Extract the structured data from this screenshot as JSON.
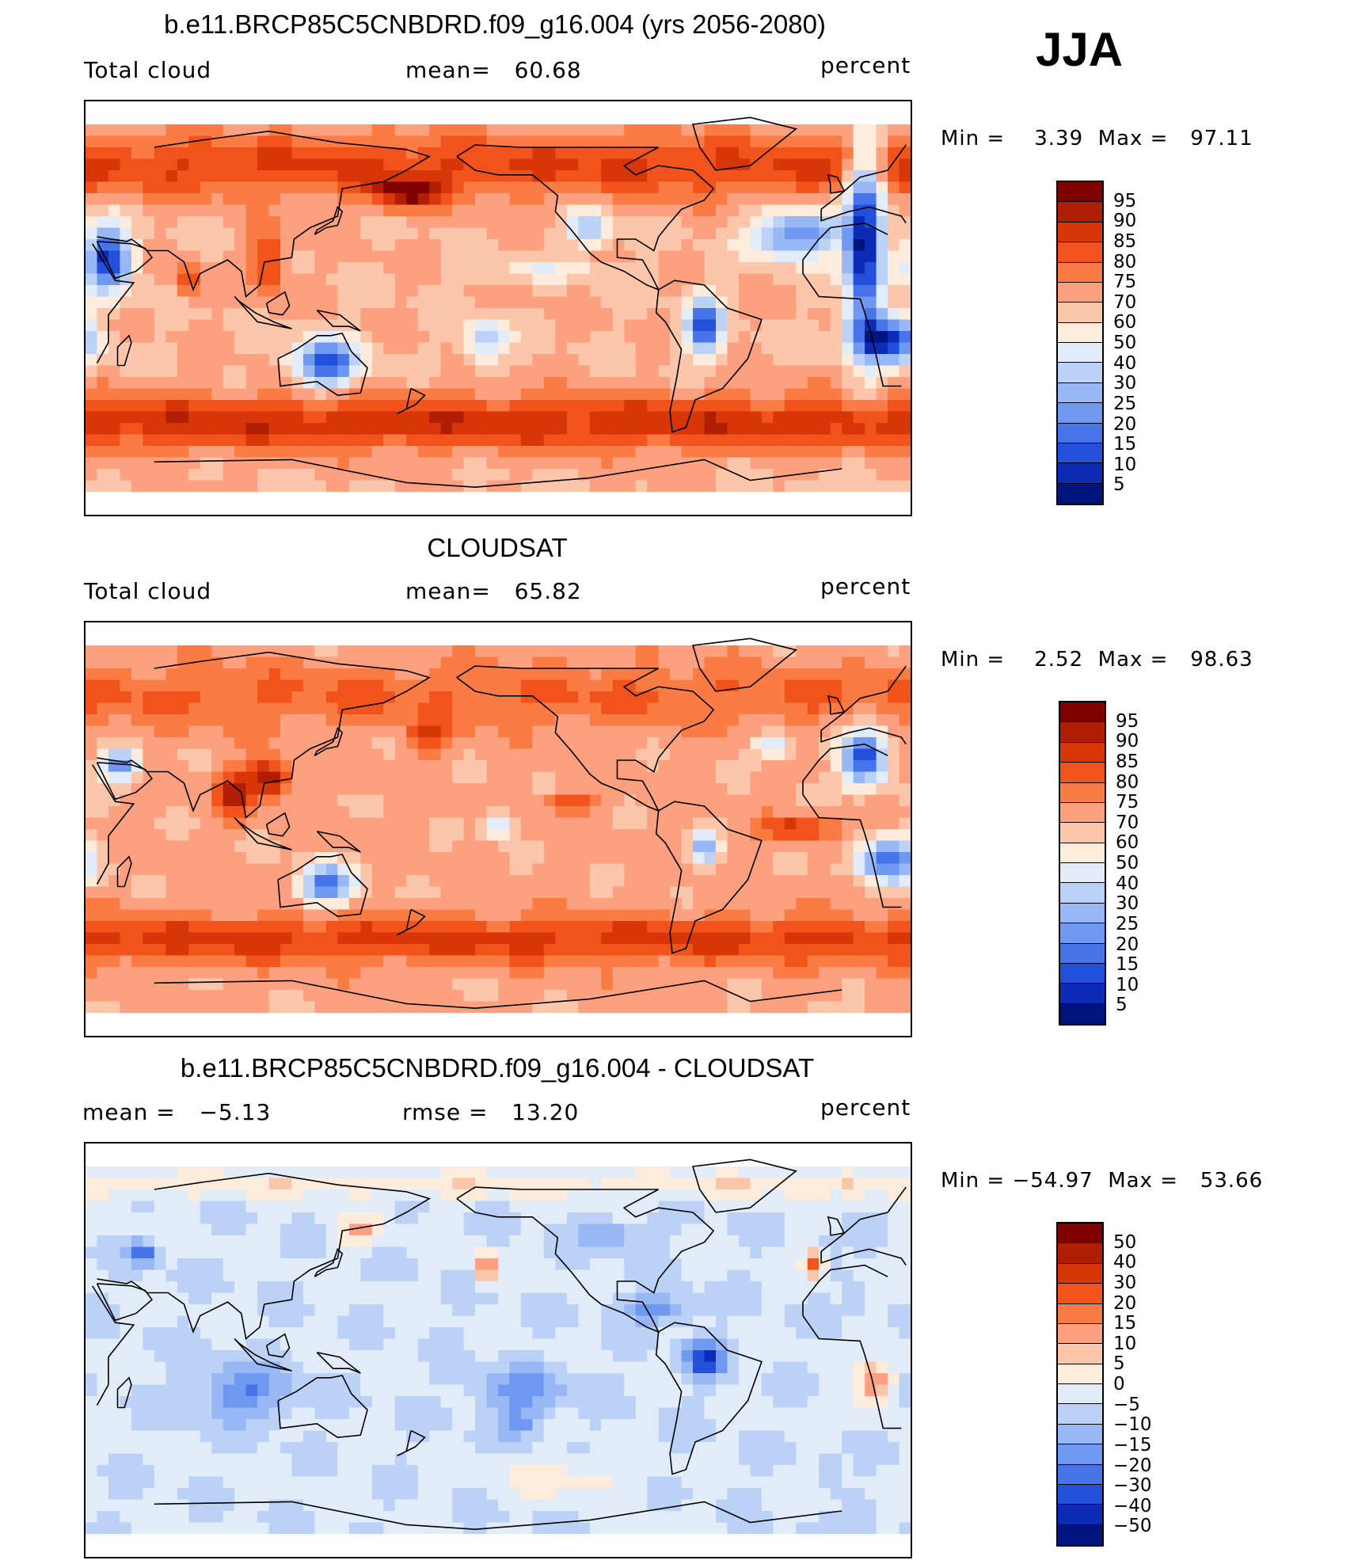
{
  "season": "JJA",
  "panels": [
    {
      "title": "b.e11.BRCP85C5CNBDRD.f09_g16.004 (yrs 2056-2080)",
      "left": "Total cloud",
      "mean_text": "mean=   60.68",
      "units": "percent",
      "minmax": "Min =    3.39  Max =   97.11",
      "colorbar": {
        "labels": [
          "95",
          "90",
          "85",
          "80",
          "75",
          "70",
          "60",
          "50",
          "40",
          "30",
          "25",
          "20",
          "15",
          "10",
          "5"
        ],
        "colors": [
          "#800000",
          "#b01e04",
          "#d83609",
          "#f2531b",
          "#fb7b45",
          "#fca07f",
          "#fcc6aa",
          "#fdebdc",
          "#e2ecf9",
          "#bbd2f6",
          "#97b8f4",
          "#6f98f1",
          "#4775e9",
          "#2350db",
          "#0c2cb7",
          "#001480"
        ]
      },
      "field": "model"
    },
    {
      "title": "CLOUDSAT",
      "left": "Total cloud",
      "mean_text": "mean=   65.82",
      "units": "percent",
      "minmax": "Min =    2.52  Max =   98.63",
      "colorbar": {
        "labels": [
          "95",
          "90",
          "85",
          "80",
          "75",
          "70",
          "60",
          "50",
          "40",
          "30",
          "25",
          "20",
          "15",
          "10",
          "5"
        ],
        "colors": [
          "#800000",
          "#b01e04",
          "#d83609",
          "#f2531b",
          "#fb7b45",
          "#fca07f",
          "#fcc6aa",
          "#fdebdc",
          "#e2ecf9",
          "#bbd2f6",
          "#97b8f4",
          "#6f98f1",
          "#4775e9",
          "#2350db",
          "#0c2cb7",
          "#001480"
        ]
      },
      "field": "obs"
    },
    {
      "title": "b.e11.BRCP85C5CNBDRD.f09_g16.004 - CLOUDSAT",
      "left": "mean =   −5.13",
      "mean_text": "rmse =   13.20",
      "units": "percent",
      "minmax": "Min = −54.97  Max =   53.66",
      "colorbar": {
        "labels": [
          "50",
          "40",
          "30",
          "20",
          "15",
          "10",
          "5",
          "0",
          "−5",
          "−10",
          "−15",
          "−20",
          "−30",
          "−40",
          "−50"
        ],
        "colors": [
          "#800000",
          "#b01e04",
          "#d83609",
          "#f2531b",
          "#fb7b45",
          "#fca07f",
          "#fcc6aa",
          "#fdebdc",
          "#e2ecf9",
          "#bbd2f6",
          "#97b8f4",
          "#6f98f1",
          "#4775e9",
          "#2350db",
          "#0c2cb7",
          "#001480"
        ]
      },
      "field": "diff"
    }
  ]
}
